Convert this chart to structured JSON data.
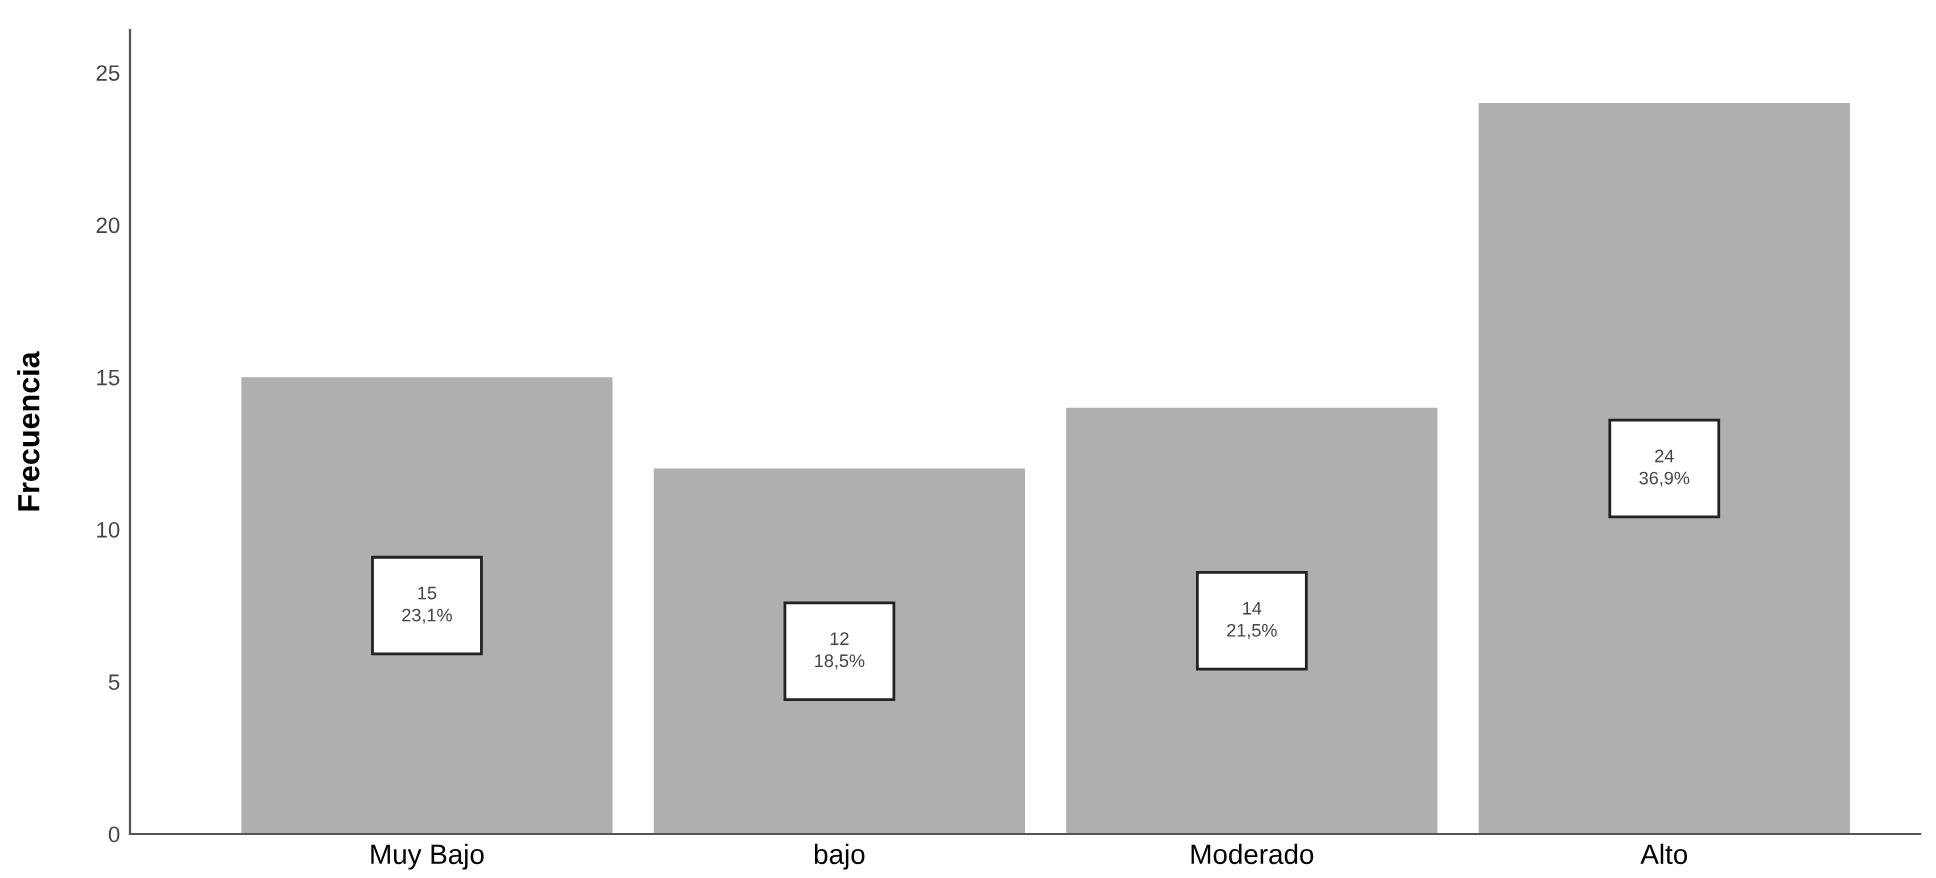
{
  "chart_data": {
    "type": "bar",
    "ylabel": "Frecuencia",
    "categories": [
      "Muy Bajo",
      "bajo",
      "Moderado",
      "Alto"
    ],
    "values": [
      15,
      12,
      14,
      24
    ],
    "value_labels": [
      "15\n23,1%",
      "12\n18,5%",
      "14\n21,5%",
      "24\n36,9%"
    ],
    "color": "#afafaf",
    "ylim": [
      0,
      26.4
    ],
    "yticks": [
      0,
      5,
      10,
      15,
      20,
      25
    ],
    "grid": false,
    "legend": false
  }
}
